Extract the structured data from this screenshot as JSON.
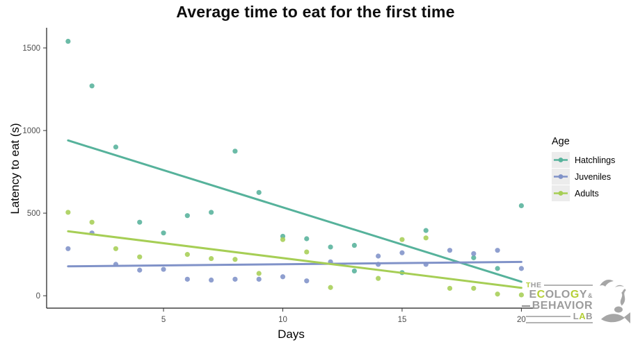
{
  "chart_data": {
    "type": "scatter",
    "title": "Average time to eat for the first time",
    "xlabel": "Days",
    "ylabel": "Latency to eat (s)",
    "xlim": [
      0.1,
      20.6
    ],
    "ylim": [
      -75,
      1622
    ],
    "x_ticks": [
      5,
      10,
      15,
      20
    ],
    "y_ticks": [
      0,
      500,
      1000,
      1500
    ],
    "grid": false,
    "legend_position": "right",
    "legend_title": "Age",
    "series": [
      {
        "name": "Hatchlings",
        "color": "#56b29b",
        "points": [
          [
            1,
            1540
          ],
          [
            2,
            1270
          ],
          [
            3,
            900
          ],
          [
            4,
            445
          ],
          [
            5,
            380
          ],
          [
            6,
            485
          ],
          [
            7,
            505
          ],
          [
            8,
            875
          ],
          [
            9,
            625
          ],
          [
            10,
            360
          ],
          [
            11,
            345
          ],
          [
            12,
            295
          ],
          [
            13,
            305
          ],
          [
            13,
            150
          ],
          [
            15,
            140
          ],
          [
            16,
            395
          ],
          [
            18,
            230
          ],
          [
            19,
            165
          ],
          [
            20,
            545
          ]
        ],
        "trend": [
          [
            1,
            940
          ],
          [
            20,
            85
          ]
        ]
      },
      {
        "name": "Juveniles",
        "color": "#8092c8",
        "points": [
          [
            1,
            285
          ],
          [
            2,
            380
          ],
          [
            3,
            190
          ],
          [
            4,
            155
          ],
          [
            5,
            160
          ],
          [
            6,
            100
          ],
          [
            7,
            95
          ],
          [
            8,
            100
          ],
          [
            9,
            100
          ],
          [
            10,
            115
          ],
          [
            11,
            90
          ],
          [
            12,
            205
          ],
          [
            14,
            240
          ],
          [
            14,
            190
          ],
          [
            15,
            260
          ],
          [
            16,
            190
          ],
          [
            17,
            275
          ],
          [
            18,
            255
          ],
          [
            19,
            275
          ],
          [
            20,
            165
          ]
        ],
        "trend": [
          [
            1,
            178
          ],
          [
            20,
            205
          ]
        ]
      },
      {
        "name": "Adults",
        "color": "#a6ce55",
        "points": [
          [
            1,
            505
          ],
          [
            2,
            445
          ],
          [
            3,
            285
          ],
          [
            4,
            235
          ],
          [
            6,
            250
          ],
          [
            7,
            225
          ],
          [
            8,
            220
          ],
          [
            9,
            135
          ],
          [
            10,
            340
          ],
          [
            11,
            265
          ],
          [
            12,
            50
          ],
          [
            14,
            105
          ],
          [
            15,
            340
          ],
          [
            16,
            350
          ],
          [
            17,
            45
          ],
          [
            18,
            45
          ],
          [
            19,
            10
          ],
          [
            20,
            5
          ]
        ],
        "trend": [
          [
            1,
            390
          ],
          [
            20,
            48
          ]
        ]
      }
    ]
  },
  "legend": {
    "title": "Age",
    "entries": [
      {
        "label": "Hatchlings",
        "color": "#56b29b"
      },
      {
        "label": "Juveniles",
        "color": "#8092c8"
      },
      {
        "label": "Adults",
        "color": "#a6ce55"
      }
    ]
  },
  "logo": {
    "accent_color": "#b5cf36",
    "gray_color": "#9c9c9c",
    "lines": [
      [
        {
          "text": "T",
          "accent": true
        },
        {
          "text": "HE",
          "accent": false
        }
      ],
      [
        {
          "text": "E",
          "accent": false
        },
        {
          "text": "C",
          "accent": true
        },
        {
          "text": "OLO",
          "accent": false
        },
        {
          "text": "G",
          "accent": true
        },
        {
          "text": "Y",
          "accent": false
        },
        {
          "text": "&",
          "accent": false,
          "small": true
        }
      ],
      [
        {
          "text": "BEHAVIOR",
          "accent": false
        }
      ],
      [
        {
          "text": "L",
          "accent": false
        },
        {
          "text": "A",
          "accent": true
        },
        {
          "text": "B",
          "accent": false
        }
      ]
    ]
  }
}
